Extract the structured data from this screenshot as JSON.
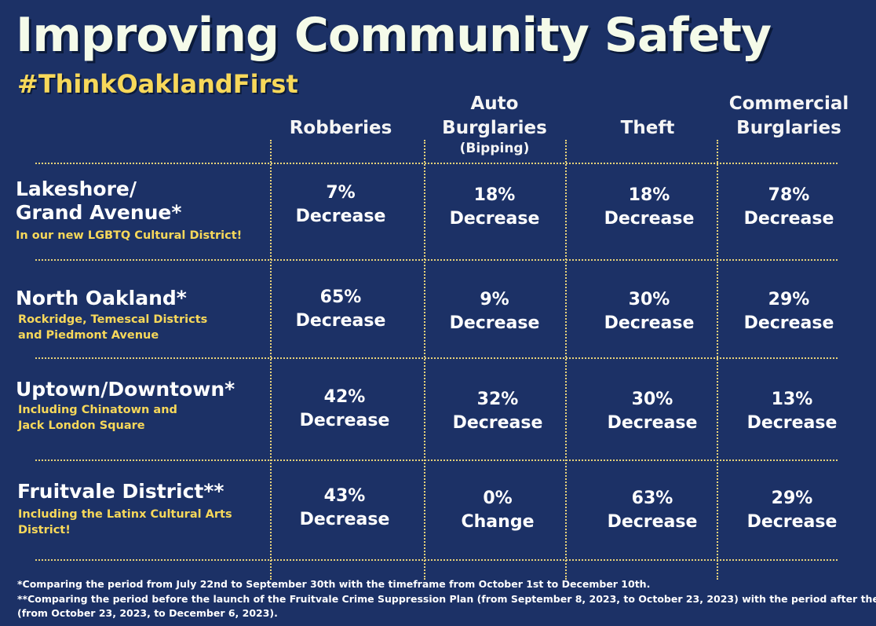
{
  "title": "Improving Community Safety",
  "hashtag": "#ThinkOaklandFirst",
  "chart_data": {
    "type": "table",
    "columns": [
      {
        "label": "Robberies",
        "sub": ""
      },
      {
        "label": "Auto Burglaries",
        "sub": "(Bipping)"
      },
      {
        "label": "Theft",
        "sub": ""
      },
      {
        "label": "Commercial Burglaries",
        "sub": ""
      }
    ],
    "rows": [
      {
        "title_lines": [
          "Lakeshore/",
          "Grand Avenue*"
        ],
        "sub_lines": [
          "In our new LGBTQ Cultural District!"
        ],
        "cells": [
          {
            "value": "7%",
            "label": "Decrease"
          },
          {
            "value": "18%",
            "label": "Decrease"
          },
          {
            "value": "18%",
            "label": "Decrease"
          },
          {
            "value": "78%",
            "label": "Decrease"
          }
        ]
      },
      {
        "title_lines": [
          "North Oakland*"
        ],
        "sub_lines": [
          "Rockridge, Temescal Districts",
          "and Piedmont Avenue"
        ],
        "cells": [
          {
            "value": "65%",
            "label": "Decrease"
          },
          {
            "value": "9%",
            "label": "Decrease"
          },
          {
            "value": "30%",
            "label": "Decrease"
          },
          {
            "value": "29%",
            "label": "Decrease"
          }
        ]
      },
      {
        "title_lines": [
          "Uptown/Downtown*"
        ],
        "sub_lines": [
          "Including Chinatown and",
          "Jack London Square"
        ],
        "cells": [
          {
            "value": "42%",
            "label": "Decrease"
          },
          {
            "value": "32%",
            "label": "Decrease"
          },
          {
            "value": "30%",
            "label": "Decrease"
          },
          {
            "value": "13%",
            "label": "Decrease"
          }
        ]
      },
      {
        "title_lines": [
          "Fruitvale District**"
        ],
        "sub_lines": [
          "Including the Latinx Cultural Arts",
          "District!"
        ],
        "cells": [
          {
            "value": "43%",
            "label": "Decrease"
          },
          {
            "value": "0%",
            "label": "Change"
          },
          {
            "value": "63%",
            "label": "Decrease"
          },
          {
            "value": "29%",
            "label": "Decrease"
          }
        ]
      }
    ]
  },
  "footnotes": [
    "*Comparing the period from July 22nd to September 30th with the timeframe from October 1st to December 10th.",
    "**Comparing the period before the launch of the Fruitvale Crime Suppression Plan (from September 8, 2023, to October 23, 2023) with the period after the launch",
    "(from October 23, 2023, to December 6, 2023)."
  ],
  "colors": {
    "background": "#1c3166",
    "accent": "#f7d85a",
    "text": "#ffffff"
  }
}
